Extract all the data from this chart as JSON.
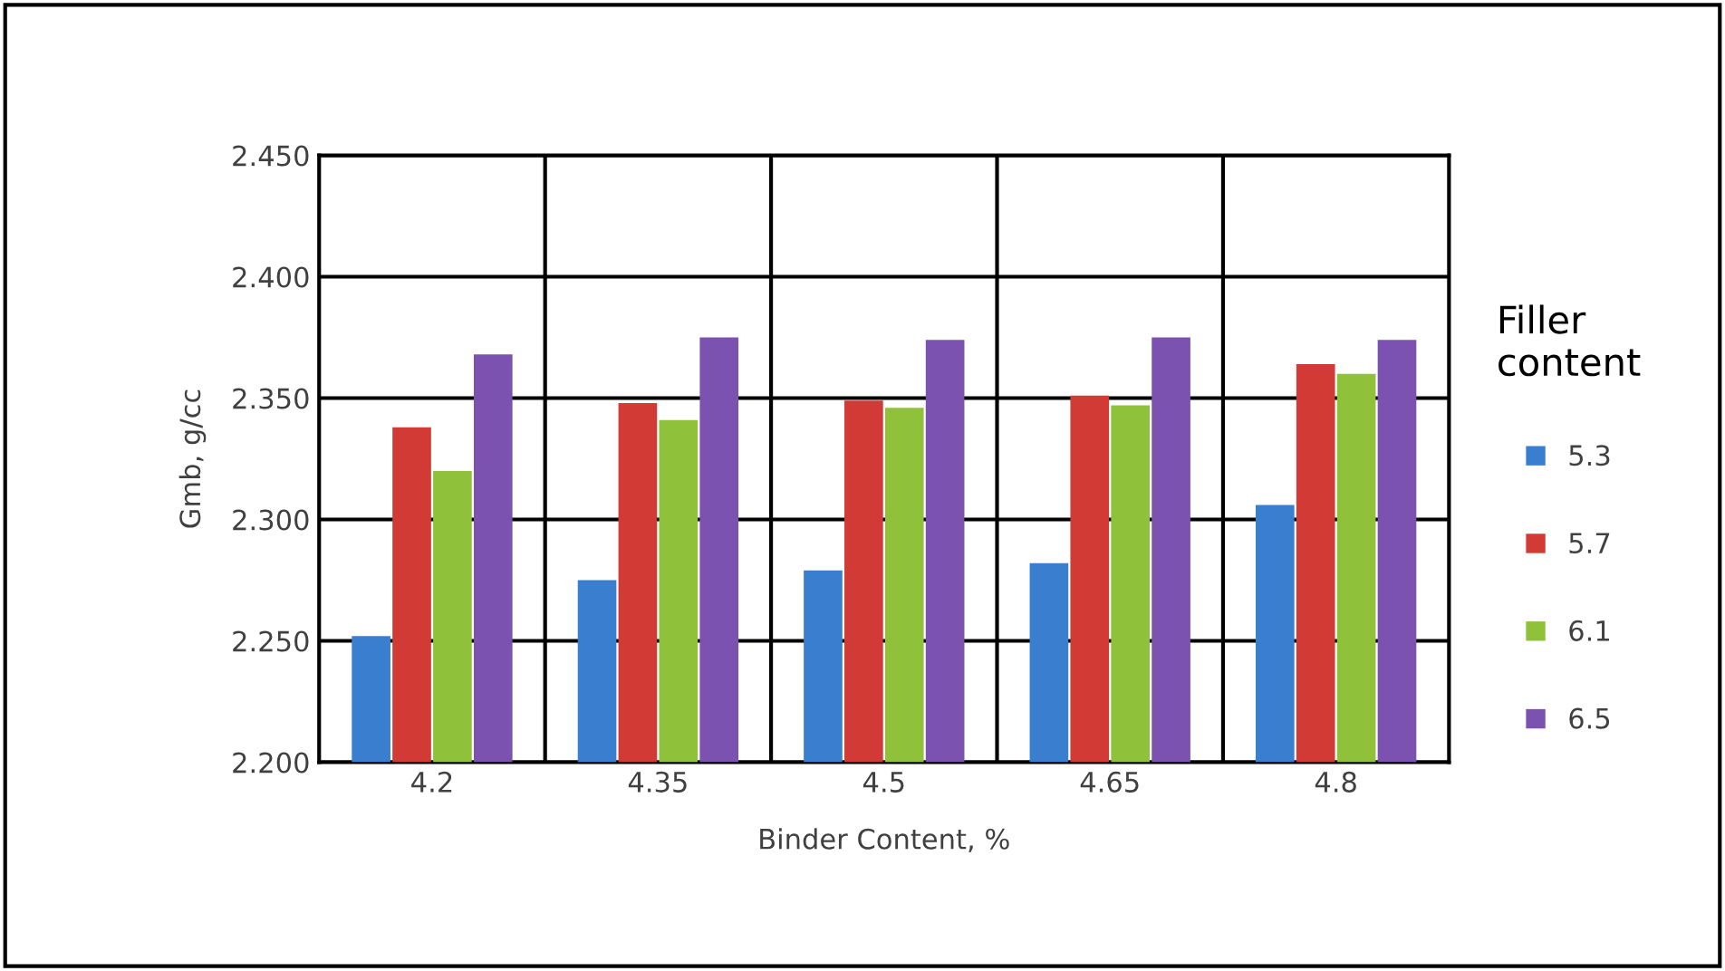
{
  "chart_data": {
    "type": "bar",
    "xlabel": "Binder Content, %",
    "ylabel": "Gmb, g/cc",
    "legend_title": "Filler\ncontent",
    "categories": [
      "4.2",
      "4.35",
      "4.5",
      "4.65",
      "4.8"
    ],
    "series": [
      {
        "name": "5.3",
        "color": "#3a7fcf",
        "values": [
          2.252,
          2.275,
          2.279,
          2.282,
          2.306
        ]
      },
      {
        "name": "5.7",
        "color": "#d23b35",
        "values": [
          2.338,
          2.348,
          2.349,
          2.351,
          2.364
        ]
      },
      {
        "name": "6.1",
        "color": "#8fc13a",
        "values": [
          2.32,
          2.341,
          2.346,
          2.347,
          2.36
        ]
      },
      {
        "name": "6.5",
        "color": "#7b52b0",
        "values": [
          2.368,
          2.375,
          2.374,
          2.375,
          2.374
        ]
      }
    ],
    "ylim": [
      2.2,
      2.45
    ],
    "yticks": [
      {
        "value": 2.2,
        "label": "2.200"
      },
      {
        "value": 2.25,
        "label": "2.250"
      },
      {
        "value": 2.3,
        "label": "2.300"
      },
      {
        "value": 2.35,
        "label": "2.350"
      },
      {
        "value": 2.4,
        "label": "2.400"
      },
      {
        "value": 2.45,
        "label": "2.450"
      }
    ],
    "grid": true,
    "legend": "right"
  }
}
